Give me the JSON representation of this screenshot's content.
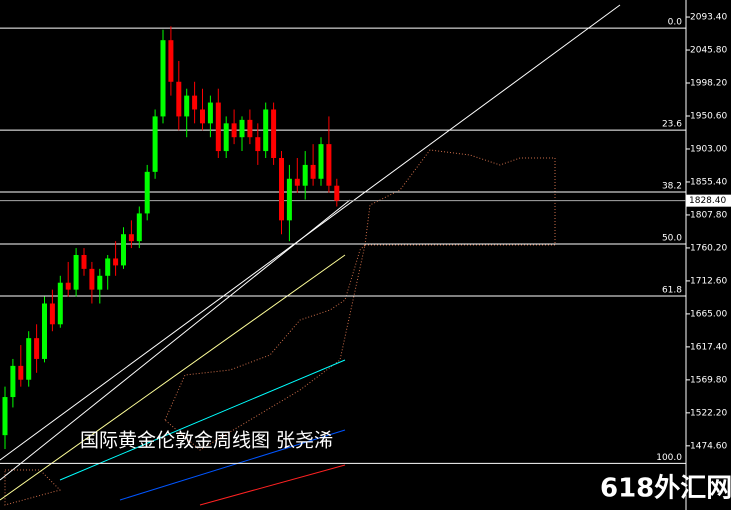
{
  "chart_data": {
    "type": "candlestick",
    "annotation": "国际黄金伦敦金周线图 张尧浠",
    "watermark": "618外汇网",
    "up_color": "#00ff00",
    "down_color": "#ff0000",
    "open": [
      1490,
      1545,
      1590,
      1570,
      1630,
      1600,
      1680,
      1650,
      1710,
      1700,
      1750,
      1730,
      1700,
      1720,
      1745,
      1735,
      1780,
      1770,
      1810,
      1870,
      1950,
      2060,
      2000,
      1950,
      1980,
      1960,
      1940,
      1970,
      1900,
      1940,
      1920,
      1945,
      1920,
      1900,
      1960,
      1890,
      1800,
      1860,
      1850,
      1880,
      1860,
      1910,
      1850
    ],
    "high": [
      1560,
      1600,
      1620,
      1640,
      1650,
      1690,
      1700,
      1720,
      1740,
      1760,
      1760,
      1740,
      1730,
      1750,
      1770,
      1790,
      1800,
      1820,
      1880,
      1960,
      2075,
      2080,
      2030,
      1990,
      2000,
      1990,
      1980,
      1990,
      1950,
      1960,
      1950,
      1960,
      1940,
      1970,
      1970,
      1900,
      1880,
      1890,
      1900,
      1910,
      1920,
      1950,
      1860
    ],
    "low": [
      1470,
      1530,
      1560,
      1560,
      1580,
      1595,
      1640,
      1645,
      1690,
      1690,
      1720,
      1680,
      1680,
      1700,
      1720,
      1730,
      1760,
      1760,
      1800,
      1860,
      1940,
      1980,
      1930,
      1920,
      1940,
      1930,
      1920,
      1890,
      1890,
      1910,
      1900,
      1910,
      1880,
      1890,
      1880,
      1780,
      1770,
      1840,
      1830,
      1850,
      1850,
      1840,
      1820
    ],
    "close": [
      1545,
      1590,
      1570,
      1630,
      1600,
      1680,
      1650,
      1710,
      1700,
      1750,
      1730,
      1700,
      1720,
      1745,
      1735,
      1780,
      1770,
      1810,
      1870,
      1950,
      2060,
      2000,
      1950,
      1980,
      1960,
      1940,
      1970,
      1900,
      1940,
      1920,
      1945,
      1920,
      1900,
      1960,
      1890,
      1800,
      1860,
      1850,
      1880,
      1860,
      1910,
      1850,
      1828.4
    ],
    "ylim": [
      1382,
      2118
    ],
    "yticks": [
      {
        "value": 2093.4,
        "label": "2093.40"
      },
      {
        "value": 2045.8,
        "label": "2045.80"
      },
      {
        "value": 1998.2,
        "label": "1998.20"
      },
      {
        "value": 1950.6,
        "label": "1950.60"
      },
      {
        "value": 1903,
        "label": "1903.00"
      },
      {
        "value": 1855.4,
        "label": "1855.40"
      },
      {
        "value": 1807.8,
        "label": "1807.80"
      },
      {
        "value": 1760.2,
        "label": "1760.20"
      },
      {
        "value": 1712.6,
        "label": "1712.60"
      },
      {
        "value": 1665,
        "label": "1665.00"
      },
      {
        "value": 1617.4,
        "label": "1617.40"
      },
      {
        "value": 1569.8,
        "label": "1569.80"
      },
      {
        "value": 1522.2,
        "label": "1522.20"
      },
      {
        "value": 1474.6,
        "label": "1474.60"
      }
    ],
    "fib_levels": [
      {
        "label": "0.0",
        "price": 2077.5
      },
      {
        "label": "23.6",
        "price": 1930.3
      },
      {
        "label": "38.2",
        "price": 1840.9
      },
      {
        "label": "50.0",
        "price": 1765.8
      },
      {
        "label": "61.8",
        "price": 1690.8
      },
      {
        "label": "100.0",
        "price": 1449.3
      }
    ],
    "last_price": {
      "value": 1828.4,
      "label": "1828.40"
    }
  }
}
